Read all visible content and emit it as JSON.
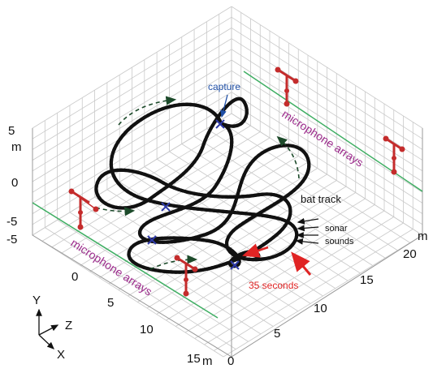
{
  "labels": {
    "capture": "capture",
    "microphone_arrays_top": "microphone arrays",
    "microphone_arrays_bottom": "microphone arrays",
    "bat_track": "bat track",
    "sonar": "sonar",
    "sounds": "sounds",
    "time": "35 seconds"
  },
  "axes": {
    "y": {
      "ticks": [
        "5",
        "0",
        "-5"
      ],
      "unit": "m",
      "extra_tick": "-5"
    },
    "x": {
      "ticks": [
        "0",
        "5",
        "10",
        "15"
      ],
      "unit": "m"
    },
    "z": {
      "ticks": [
        "0",
        "5",
        "10",
        "15",
        "20"
      ],
      "unit": "m"
    }
  },
  "triad": {
    "y": "Y",
    "z": "Z",
    "x": "X"
  },
  "colors": {
    "grid": "#c9c9c9",
    "track": "#111111",
    "track_dots": "#d42020",
    "capture_label": "#1f4fa6",
    "marker": "#2f3aa8",
    "mic_label": "#9c2b8c",
    "mic_array": "#c42c2c",
    "array_line": "#3fae63",
    "arrow_red": "#e02424",
    "flight_arrow": "#1c4a2a"
  }
}
